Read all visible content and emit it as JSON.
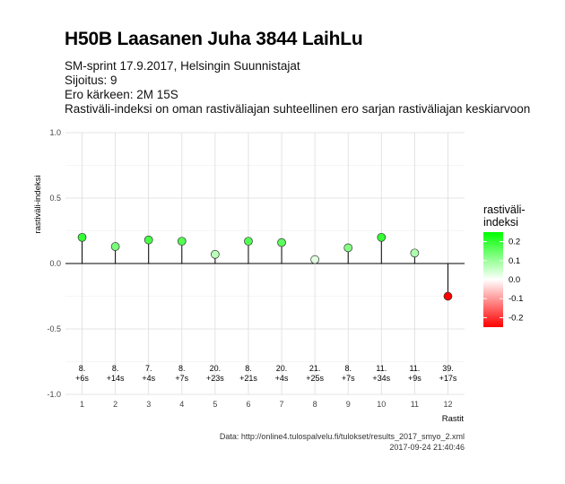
{
  "title": "H50B Laasanen Juha 3844 LaihLu",
  "subtitle_lines": [
    "SM-sprint 17.9.2017, Helsingin Suunnistajat",
    "Sijoitus: 9",
    "Ero kärkeen: 2M 15S",
    "Rastiväli-indeksi on oman rastiväliajan suhteellinen ero sarjan rastiväliajan keskiarvoon"
  ],
  "caption_lines": [
    "Data: http://online4.tulospalvelu.fi/tulokset/results_2017_smyo_2.xml",
    "2017-09-24 21:40:46"
  ],
  "colors": {
    "low": "#ff0000",
    "mid": "#ffffff",
    "high": "#00ff00"
  },
  "chart_data": {
    "type": "lollipop",
    "xlabel": "Rastit",
    "ylabel": "rastiväli-indeksi",
    "ylim": [
      -1.0,
      1.0
    ],
    "xlim": [
      0.5,
      12.5
    ],
    "yticks": [
      "1.0",
      "0.5",
      "0.0",
      "-0.5",
      "-1.0"
    ],
    "xticks": [
      "1",
      "2",
      "3",
      "4",
      "5",
      "6",
      "7",
      "8",
      "9",
      "10",
      "11",
      "12"
    ],
    "grid": true,
    "legend": {
      "title_lines": [
        "rastiväli-",
        "indeksi"
      ],
      "ticks": [
        "0.2",
        "0.1",
        "0.0",
        "-0.1",
        "-0.2"
      ],
      "position": "right"
    },
    "points": [
      {
        "x": 1,
        "y": 0.2,
        "rank": "8.",
        "diff": "+6s"
      },
      {
        "x": 2,
        "y": 0.13,
        "rank": "8.",
        "diff": "+14s"
      },
      {
        "x": 3,
        "y": 0.18,
        "rank": "7.",
        "diff": "+4s"
      },
      {
        "x": 4,
        "y": 0.17,
        "rank": "8.",
        "diff": "+7s"
      },
      {
        "x": 5,
        "y": 0.07,
        "rank": "20.",
        "diff": "+23s"
      },
      {
        "x": 6,
        "y": 0.17,
        "rank": "8.",
        "diff": "+21s"
      },
      {
        "x": 7,
        "y": 0.16,
        "rank": "20.",
        "diff": "+4s"
      },
      {
        "x": 8,
        "y": 0.03,
        "rank": "21.",
        "diff": "+25s"
      },
      {
        "x": 9,
        "y": 0.12,
        "rank": "8.",
        "diff": "+7s"
      },
      {
        "x": 10,
        "y": 0.2,
        "rank": "11.",
        "diff": "+34s"
      },
      {
        "x": 11,
        "y": 0.08,
        "rank": "11.",
        "diff": "+9s"
      },
      {
        "x": 12,
        "y": -0.25,
        "rank": "39.",
        "diff": "+17s"
      }
    ]
  }
}
